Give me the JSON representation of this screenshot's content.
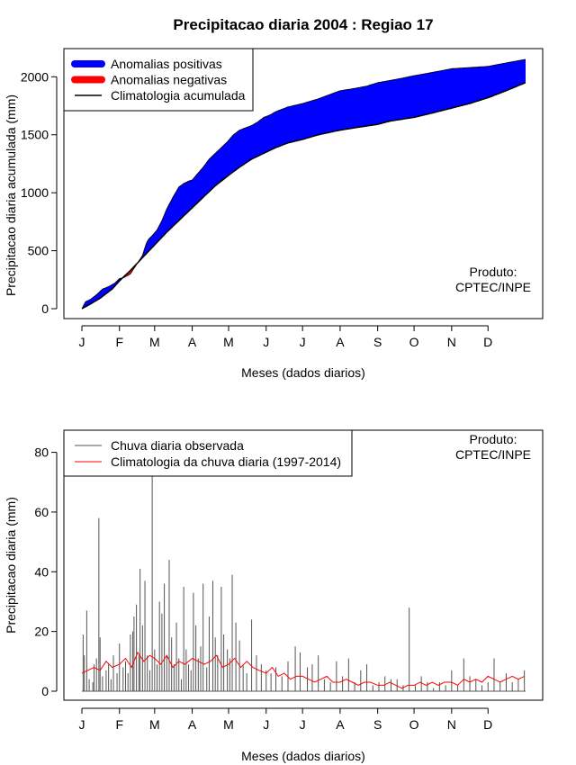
{
  "chart_data": [
    {
      "type": "area",
      "title": "Precipitacao diaria 2004 : Regiao 17",
      "xlabel": "Meses (dados diarios)",
      "ylabel": "Precipitacao diaria acumulada (mm)",
      "xlim_days": [
        0,
        366
      ],
      "ylim": [
        0,
        2150
      ],
      "y_ticks": [
        0,
        500,
        1000,
        1500,
        2000
      ],
      "month_ticks": [
        {
          "label": "J",
          "day": 0
        },
        {
          "label": "F",
          "day": 31
        },
        {
          "label": "M",
          "day": 60
        },
        {
          "label": "A",
          "day": 91
        },
        {
          "label": "M",
          "day": 121
        },
        {
          "label": "J",
          "day": 152
        },
        {
          "label": "J",
          "day": 182
        },
        {
          "label": "A",
          "day": 213
        },
        {
          "label": "S",
          "day": 244
        },
        {
          "label": "O",
          "day": 274
        },
        {
          "label": "N",
          "day": 305
        },
        {
          "label": "D",
          "day": 335
        }
      ],
      "legend": {
        "placement": "top-left",
        "items": [
          {
            "label": "Anomalias positivas",
            "color": "#0000ff",
            "kind": "thick"
          },
          {
            "label": "Anomalias negativas",
            "color": "#ff0000",
            "kind": "thick"
          },
          {
            "label": "Climatologia acumulada",
            "color": "#000000",
            "kind": "thin"
          }
        ]
      },
      "note": [
        "Produto:",
        "CPTEC/INPE"
      ],
      "series": [
        {
          "name": "Climatologia acumulada",
          "color": "#000000",
          "x": [
            0,
            7,
            15,
            25,
            31,
            40,
            50,
            60,
            70,
            80,
            91,
            100,
            110,
            121,
            130,
            140,
            152,
            160,
            170,
            182,
            195,
            213,
            225,
            244,
            255,
            274,
            290,
            305,
            320,
            335,
            350,
            366
          ],
          "y": [
            0,
            40,
            90,
            170,
            240,
            330,
            440,
            550,
            660,
            760,
            870,
            960,
            1060,
            1150,
            1220,
            1290,
            1350,
            1390,
            1430,
            1460,
            1500,
            1540,
            1560,
            1590,
            1620,
            1650,
            1690,
            1730,
            1770,
            1820,
            1880,
            1950
          ]
        },
        {
          "name": "Precipitacao observada acumulada",
          "color": "#0000ff",
          "x": [
            0,
            3,
            7,
            12,
            17,
            22,
            27,
            31,
            35,
            40,
            45,
            50,
            53,
            55,
            58,
            62,
            66,
            70,
            75,
            80,
            84,
            88,
            91,
            95,
            100,
            105,
            110,
            115,
            120,
            125,
            130,
            135,
            140,
            145,
            150,
            155,
            160,
            170,
            182,
            195,
            205,
            213,
            225,
            235,
            244,
            255,
            265,
            274,
            285,
            295,
            305,
            320,
            335,
            345,
            355,
            366
          ],
          "y": [
            0,
            60,
            80,
            120,
            170,
            190,
            220,
            260,
            270,
            300,
            380,
            460,
            560,
            600,
            630,
            680,
            760,
            860,
            960,
            1050,
            1080,
            1100,
            1110,
            1160,
            1220,
            1290,
            1340,
            1390,
            1440,
            1500,
            1540,
            1560,
            1580,
            1610,
            1650,
            1670,
            1700,
            1740,
            1770,
            1810,
            1850,
            1880,
            1900,
            1920,
            1950,
            1970,
            1990,
            2010,
            2030,
            2050,
            2070,
            2080,
            2090,
            2110,
            2130,
            2150
          ]
        }
      ]
    },
    {
      "type": "line",
      "title": "",
      "xlabel": "Meses (dados diarios)",
      "ylabel": "Precipitacao diaria (mm)",
      "xlim_days": [
        0,
        366
      ],
      "ylim": [
        0,
        85
      ],
      "y_ticks": [
        0,
        20,
        40,
        60,
        80
      ],
      "month_ticks": [
        {
          "label": "J",
          "day": 0
        },
        {
          "label": "F",
          "day": 31
        },
        {
          "label": "M",
          "day": 60
        },
        {
          "label": "A",
          "day": 91
        },
        {
          "label": "M",
          "day": 121
        },
        {
          "label": "J",
          "day": 152
        },
        {
          "label": "J",
          "day": 182
        },
        {
          "label": "A",
          "day": 213
        },
        {
          "label": "S",
          "day": 244
        },
        {
          "label": "O",
          "day": 274
        },
        {
          "label": "N",
          "day": 305
        },
        {
          "label": "D",
          "day": 335
        }
      ],
      "legend": {
        "placement": "top-left",
        "items": [
          {
            "label": "Chuva diaria observada",
            "color": "#555555",
            "kind": "thin"
          },
          {
            "label": "Climatologia da chuva diaria (1997-2014)",
            "color": "#ff0000",
            "kind": "thin"
          }
        ]
      },
      "note": [
        "Produto:",
        "CPTEC/INPE"
      ],
      "series": [
        {
          "name": "Chuva diaria observada",
          "color": "#555555",
          "kind": "spikes",
          "x": [
            1,
            2,
            4,
            6,
            9,
            10,
            12,
            14,
            15,
            17,
            20,
            22,
            24,
            26,
            29,
            31,
            34,
            36,
            38,
            40,
            42,
            43,
            45,
            47,
            48,
            50,
            52,
            54,
            56,
            58,
            60,
            62,
            64,
            66,
            68,
            70,
            72,
            74,
            76,
            78,
            80,
            82,
            84,
            86,
            88,
            90,
            92,
            94,
            96,
            98,
            100,
            103,
            105,
            108,
            110,
            112,
            115,
            117,
            120,
            122,
            124,
            127,
            130,
            133,
            136,
            140,
            144,
            148,
            152,
            156,
            160,
            165,
            170,
            176,
            180,
            186,
            190,
            195,
            200,
            205,
            210,
            215,
            220,
            225,
            230,
            235,
            240,
            245,
            250,
            255,
            260,
            265,
            270,
            275,
            280,
            285,
            290,
            295,
            300,
            305,
            310,
            315,
            320,
            325,
            330,
            335,
            340,
            345,
            350,
            355,
            360,
            365
          ],
          "y": [
            19,
            12,
            27,
            4,
            3,
            9,
            11,
            58,
            18,
            5,
            7,
            9,
            4,
            12,
            6,
            16,
            8,
            10,
            6,
            19,
            20,
            25,
            29,
            12,
            41,
            22,
            37,
            12,
            7,
            80,
            14,
            9,
            30,
            26,
            36,
            12,
            44,
            18,
            9,
            23,
            11,
            4,
            35,
            14,
            9,
            7,
            33,
            22,
            11,
            15,
            36,
            8,
            25,
            37,
            18,
            12,
            35,
            19,
            14,
            11,
            39,
            23,
            17,
            9,
            6,
            24,
            12,
            9,
            7,
            6,
            8,
            5,
            10,
            15,
            13,
            8,
            9,
            12,
            4,
            3,
            10,
            5,
            11,
            3,
            7,
            9,
            2,
            3,
            5,
            4,
            4,
            2,
            28,
            2,
            5,
            3,
            1,
            3,
            2,
            7,
            2,
            11,
            5,
            4,
            2,
            3,
            11,
            3,
            6,
            3,
            4,
            7
          ]
        },
        {
          "name": "Climatologia da chuva diaria (1997-2014)",
          "color": "#ff0000",
          "kind": "line",
          "x": [
            0,
            5,
            10,
            15,
            20,
            25,
            31,
            36,
            41,
            46,
            51,
            56,
            60,
            65,
            70,
            75,
            80,
            85,
            91,
            96,
            101,
            106,
            111,
            116,
            121,
            126,
            131,
            136,
            141,
            146,
            152,
            157,
            162,
            167,
            172,
            177,
            182,
            187,
            192,
            197,
            202,
            207,
            213,
            218,
            223,
            228,
            233,
            238,
            244,
            249,
            254,
            259,
            264,
            269,
            274,
            279,
            284,
            289,
            294,
            299,
            305,
            310,
            315,
            320,
            325,
            330,
            335,
            340,
            345,
            350,
            355,
            360,
            365
          ],
          "y": [
            6,
            7,
            8,
            7,
            10,
            8,
            9,
            11,
            8,
            13,
            10,
            12,
            11,
            9,
            12,
            8,
            10,
            9,
            11,
            10,
            9,
            10,
            12,
            8,
            9,
            11,
            8,
            10,
            8,
            7,
            6,
            8,
            5,
            6,
            4,
            5,
            5,
            4,
            3,
            4,
            5,
            3,
            3,
            4,
            3,
            2,
            3,
            3,
            2,
            2,
            3,
            2,
            1,
            2,
            2,
            3,
            2,
            3,
            2,
            3,
            3,
            2,
            4,
            3,
            4,
            3,
            5,
            4,
            3,
            4,
            5,
            4,
            5
          ]
        }
      ]
    }
  ]
}
